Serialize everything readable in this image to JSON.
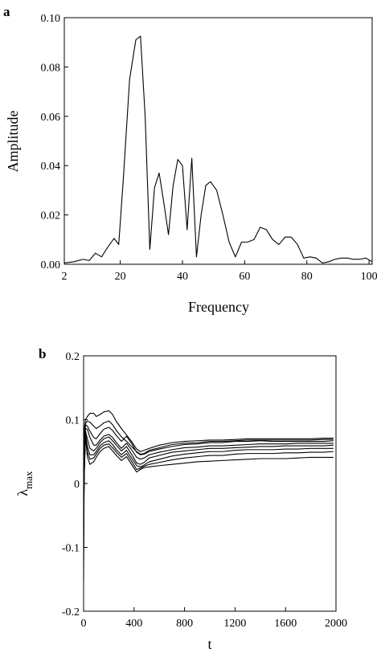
{
  "chart_data": [
    {
      "type": "line",
      "panel_label": "a",
      "xlabel": "Frequency",
      "ylabel": "Amplitude",
      "xlim": [
        2,
        101
      ],
      "ylim": [
        0,
        0.1
      ],
      "xticks": [
        2,
        20,
        40,
        60,
        80,
        100
      ],
      "xtick_labels": [
        "2",
        "20",
        "40",
        "60",
        "80",
        "100"
      ],
      "yticks": [
        0,
        0.02,
        0.04,
        0.06,
        0.08,
        0.1
      ],
      "ytick_labels": [
        "0.00",
        "0.02",
        "0.04",
        "0.06",
        "0.08",
        "0.10"
      ],
      "grid": false,
      "series": [
        {
          "x": [
            2,
            5,
            8,
            10,
            12,
            14,
            16,
            18,
            19.5,
            21,
            23,
            25,
            26.5,
            28,
            29.5,
            31,
            32.5,
            34,
            35.5,
            37,
            38.5,
            40,
            41.5,
            43,
            44.5,
            46,
            47.5,
            49,
            51,
            53,
            55,
            57,
            59,
            61,
            63,
            65,
            67,
            69,
            71,
            73,
            75,
            77,
            79,
            81,
            83,
            85,
            87,
            89,
            91,
            93,
            95,
            97,
            99,
            101
          ],
          "y": [
            0.0005,
            0.001,
            0.002,
            0.0015,
            0.0045,
            0.003,
            0.007,
            0.0105,
            0.008,
            0.035,
            0.075,
            0.091,
            0.0925,
            0.06,
            0.006,
            0.031,
            0.037,
            0.025,
            0.012,
            0.032,
            0.0425,
            0.04,
            0.014,
            0.043,
            0.003,
            0.02,
            0.032,
            0.0335,
            0.03,
            0.02,
            0.009,
            0.003,
            0.009,
            0.009,
            0.01,
            0.015,
            0.014,
            0.01,
            0.008,
            0.011,
            0.011,
            0.008,
            0.0025,
            0.003,
            0.0025,
            0.0005,
            0.001,
            0.002,
            0.0025,
            0.0025,
            0.002,
            0.002,
            0.0025,
            0.001
          ]
        }
      ]
    },
    {
      "type": "line",
      "panel_label": "b",
      "xlabel": "t",
      "ylabel": "λ",
      "ylabel_sub": "max",
      "xlim": [
        0,
        2000
      ],
      "ylim": [
        -0.2,
        0.2
      ],
      "xticks": [
        0,
        400,
        800,
        1200,
        1600,
        2000
      ],
      "xtick_labels": [
        "0",
        "400",
        "800",
        "1200",
        "1600",
        "2000"
      ],
      "yticks": [
        -0.2,
        -0.1,
        0,
        0.1,
        0.2
      ],
      "ytick_labels": [
        "-0.2",
        "-0.1",
        "0",
        "0.1",
        "0.2"
      ],
      "grid": false,
      "x": [
        0,
        5,
        15,
        30,
        50,
        80,
        100,
        130,
        160,
        200,
        230,
        260,
        300,
        340,
        380,
        420,
        450,
        480,
        520,
        600,
        700,
        800,
        900,
        1000,
        1100,
        1200,
        1300,
        1400,
        1500,
        1600,
        1700,
        1800,
        1900,
        1980
      ],
      "series": [
        {
          "y": [
            -0.02,
            0.085,
            0.1,
            0.105,
            0.11,
            0.11,
            0.105,
            0.108,
            0.112,
            0.114,
            0.108,
            0.097,
            0.086,
            0.076,
            0.066,
            0.054,
            0.05,
            0.052,
            0.055,
            0.06,
            0.064,
            0.066,
            0.067,
            0.068,
            0.068,
            0.069,
            0.07,
            0.07,
            0.07,
            0.07,
            0.07,
            0.07,
            0.071,
            0.071
          ]
        },
        {
          "y": [
            -0.05,
            0.07,
            0.094,
            0.098,
            0.096,
            0.09,
            0.086,
            0.09,
            0.095,
            0.098,
            0.092,
            0.083,
            0.073,
            0.066,
            0.058,
            0.05,
            0.046,
            0.047,
            0.052,
            0.056,
            0.061,
            0.063,
            0.064,
            0.066,
            0.066,
            0.067,
            0.068,
            0.068,
            0.068,
            0.068,
            0.068,
            0.068,
            0.069,
            0.069
          ]
        },
        {
          "y": [
            -0.1,
            0.055,
            0.092,
            0.09,
            0.082,
            0.072,
            0.07,
            0.078,
            0.085,
            0.088,
            0.083,
            0.075,
            0.066,
            0.074,
            0.063,
            0.049,
            0.045,
            0.046,
            0.05,
            0.054,
            0.058,
            0.061,
            0.062,
            0.064,
            0.064,
            0.066,
            0.066,
            0.067,
            0.066,
            0.066,
            0.066,
            0.066,
            0.066,
            0.067
          ]
        },
        {
          "y": [
            -0.15,
            0.04,
            0.086,
            0.085,
            0.072,
            0.06,
            0.06,
            0.068,
            0.074,
            0.077,
            0.072,
            0.064,
            0.055,
            0.063,
            0.053,
            0.041,
            0.038,
            0.04,
            0.045,
            0.049,
            0.053,
            0.056,
            0.057,
            0.059,
            0.059,
            0.06,
            0.061,
            0.062,
            0.062,
            0.062,
            0.063,
            0.063,
            0.063,
            0.063
          ]
        },
        {
          "y": [
            -0.12,
            0.03,
            0.082,
            0.07,
            0.055,
            0.051,
            0.055,
            0.064,
            0.07,
            0.073,
            0.067,
            0.06,
            0.051,
            0.058,
            0.046,
            0.032,
            0.03,
            0.033,
            0.04,
            0.044,
            0.049,
            0.051,
            0.053,
            0.055,
            0.055,
            0.056,
            0.057,
            0.058,
            0.058,
            0.059,
            0.059,
            0.059,
            0.059,
            0.06
          ]
        },
        {
          "y": [
            -0.08,
            0.02,
            0.078,
            0.058,
            0.045,
            0.045,
            0.05,
            0.059,
            0.064,
            0.067,
            0.061,
            0.053,
            0.045,
            0.052,
            0.04,
            0.028,
            0.026,
            0.029,
            0.034,
            0.038,
            0.043,
            0.046,
            0.048,
            0.05,
            0.05,
            0.052,
            0.053,
            0.053,
            0.053,
            0.054,
            0.054,
            0.055,
            0.055,
            0.055
          ]
        },
        {
          "y": [
            -0.06,
            0.015,
            0.076,
            0.05,
            0.038,
            0.04,
            0.046,
            0.055,
            0.06,
            0.062,
            0.056,
            0.049,
            0.041,
            0.047,
            0.035,
            0.022,
            0.024,
            0.027,
            0.03,
            0.033,
            0.037,
            0.04,
            0.042,
            0.044,
            0.044,
            0.046,
            0.047,
            0.047,
            0.047,
            0.048,
            0.048,
            0.049,
            0.049,
            0.05
          ]
        },
        {
          "y": [
            -0.04,
            0.01,
            0.074,
            0.042,
            0.03,
            0.034,
            0.041,
            0.05,
            0.055,
            0.058,
            0.051,
            0.044,
            0.036,
            0.042,
            0.03,
            0.018,
            0.022,
            0.025,
            0.026,
            0.028,
            0.03,
            0.032,
            0.034,
            0.035,
            0.036,
            0.037,
            0.038,
            0.039,
            0.039,
            0.039,
            0.04,
            0.041,
            0.041,
            0.041
          ]
        }
      ]
    }
  ]
}
